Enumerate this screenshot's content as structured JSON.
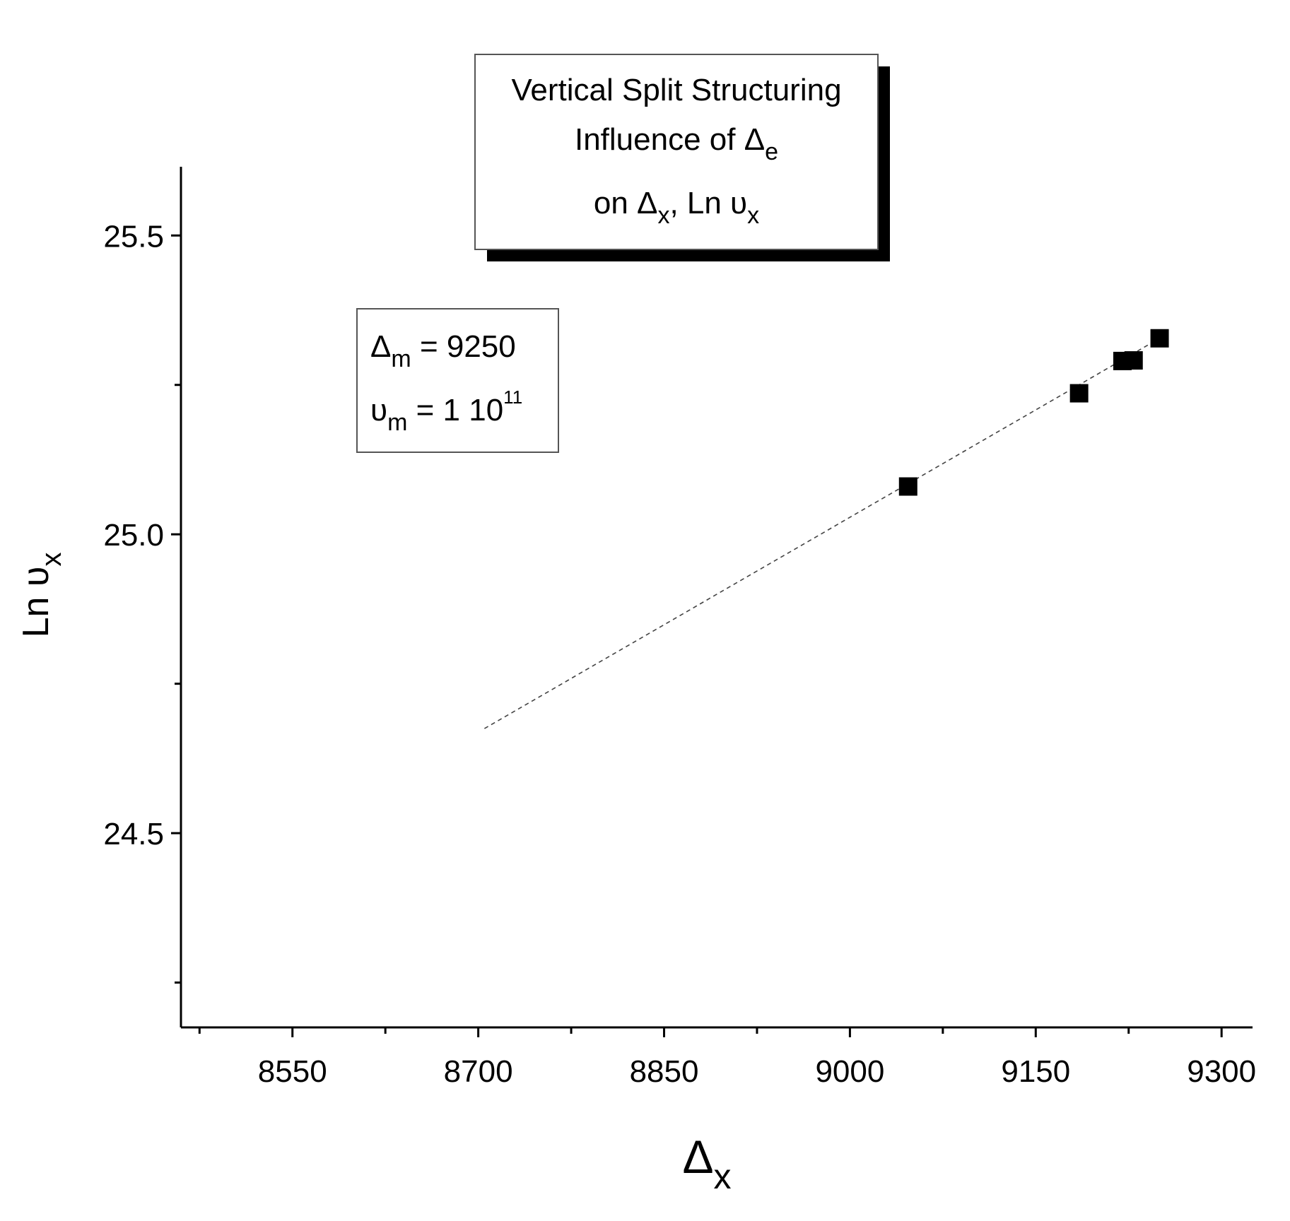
{
  "chart_data": {
    "type": "scatter",
    "title_box": {
      "line1": "Vertical Split Structuring",
      "line2": {
        "text": "Influence of Δ",
        "sub": "e"
      },
      "line3": {
        "part1": "on Δ",
        "sub1": "x",
        "part2": ", Ln υ",
        "sub2": "x"
      }
    },
    "info_box": {
      "line1": {
        "sym": "Δ",
        "sub": "m",
        "rest": " = 9250"
      },
      "line2": {
        "sym": "υ",
        "sub": "m",
        "rest": " = 1 10",
        "sup": "11"
      }
    },
    "xlabel": {
      "sym": "Δ",
      "sub": "x"
    },
    "ylabel": {
      "sym": "Ln υ",
      "sub": "x"
    },
    "xlim": [
      8460,
      9325
    ],
    "ylim": [
      24.175,
      25.615
    ],
    "x_ticks_major": [
      8550,
      8700,
      8850,
      9000,
      9150,
      9300
    ],
    "x_tick_labels": [
      "8550",
      "8700",
      "8850",
      "9000",
      "9150",
      "9300"
    ],
    "x_ticks_minor": [
      8475,
      8625,
      8775,
      8925,
      9075,
      9225
    ],
    "y_ticks_major": [
      24.5,
      25.0,
      25.5
    ],
    "y_tick_labels": [
      "24.5",
      "25.0",
      "25.5"
    ],
    "y_ticks_minor": [
      24.25,
      24.75,
      25.25
    ],
    "series": [
      {
        "marker": "square",
        "x": [
          9047,
          9185,
          9220,
          9229,
          9250
        ],
        "y": [
          25.08,
          25.236,
          25.29,
          25.291,
          25.328
        ]
      }
    ],
    "fit_line": {
      "style": "dashed",
      "x": [
        8705,
        9250
      ],
      "y": [
        24.675,
        25.328
      ]
    },
    "grid": false,
    "colors": {
      "markers": "#000000",
      "axes": "#000000",
      "background": "#ffffff"
    }
  }
}
